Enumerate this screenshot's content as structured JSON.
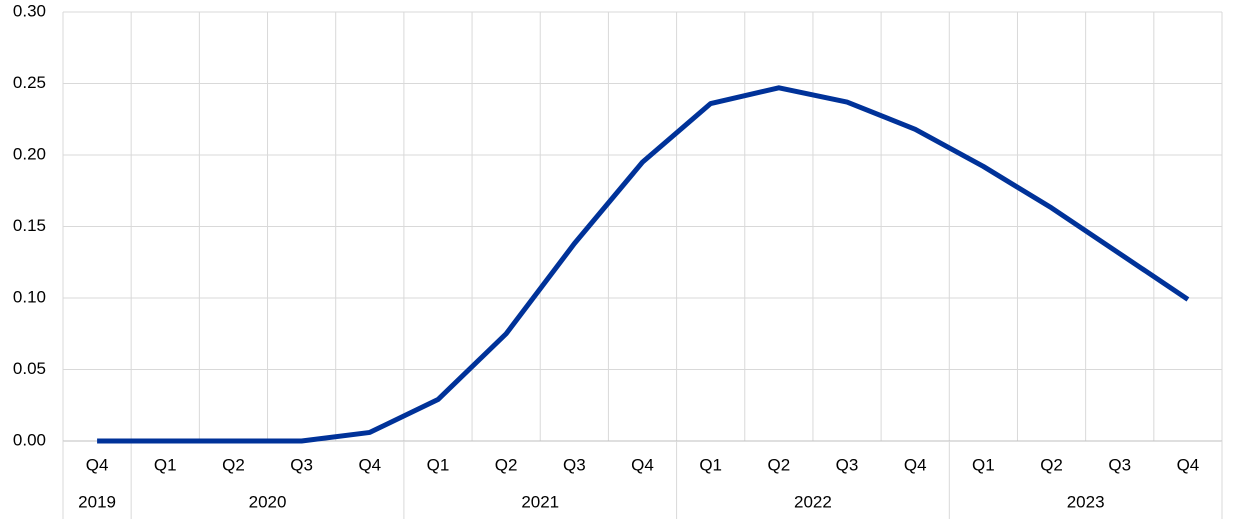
{
  "chart_data": {
    "type": "line",
    "categories": [
      "Q4",
      "Q1",
      "Q2",
      "Q3",
      "Q4",
      "Q1",
      "Q2",
      "Q3",
      "Q4",
      "Q1",
      "Q2",
      "Q3",
      "Q4",
      "Q1",
      "Q2",
      "Q3",
      "Q4"
    ],
    "year_labels": [
      "2019",
      "2020",
      null,
      null,
      null,
      "2021",
      null,
      null,
      null,
      "2022",
      null,
      null,
      null,
      "2023",
      null,
      null,
      null
    ],
    "series": [
      {
        "color": "#003299",
        "values": [
          0,
          0,
          0,
          0,
          0.006,
          0.029,
          0.075,
          0.138,
          0.195,
          0.236,
          0.247,
          0.237,
          0.218,
          0.192,
          0.163,
          0.131,
          0.099
        ]
      }
    ],
    "ylim": [
      0,
      0.3
    ],
    "yticks": [
      {
        "value": 0,
        "label": "0.00"
      },
      {
        "value": 0.05,
        "label": "0.05"
      },
      {
        "value": 0.1,
        "label": "0.10"
      },
      {
        "value": 0.15,
        "label": "0.15"
      },
      {
        "value": 0.2,
        "label": "0.20"
      },
      {
        "value": 0.25,
        "label": "0.25"
      },
      {
        "value": 0.3,
        "label": "0.30"
      }
    ],
    "grid": true
  }
}
